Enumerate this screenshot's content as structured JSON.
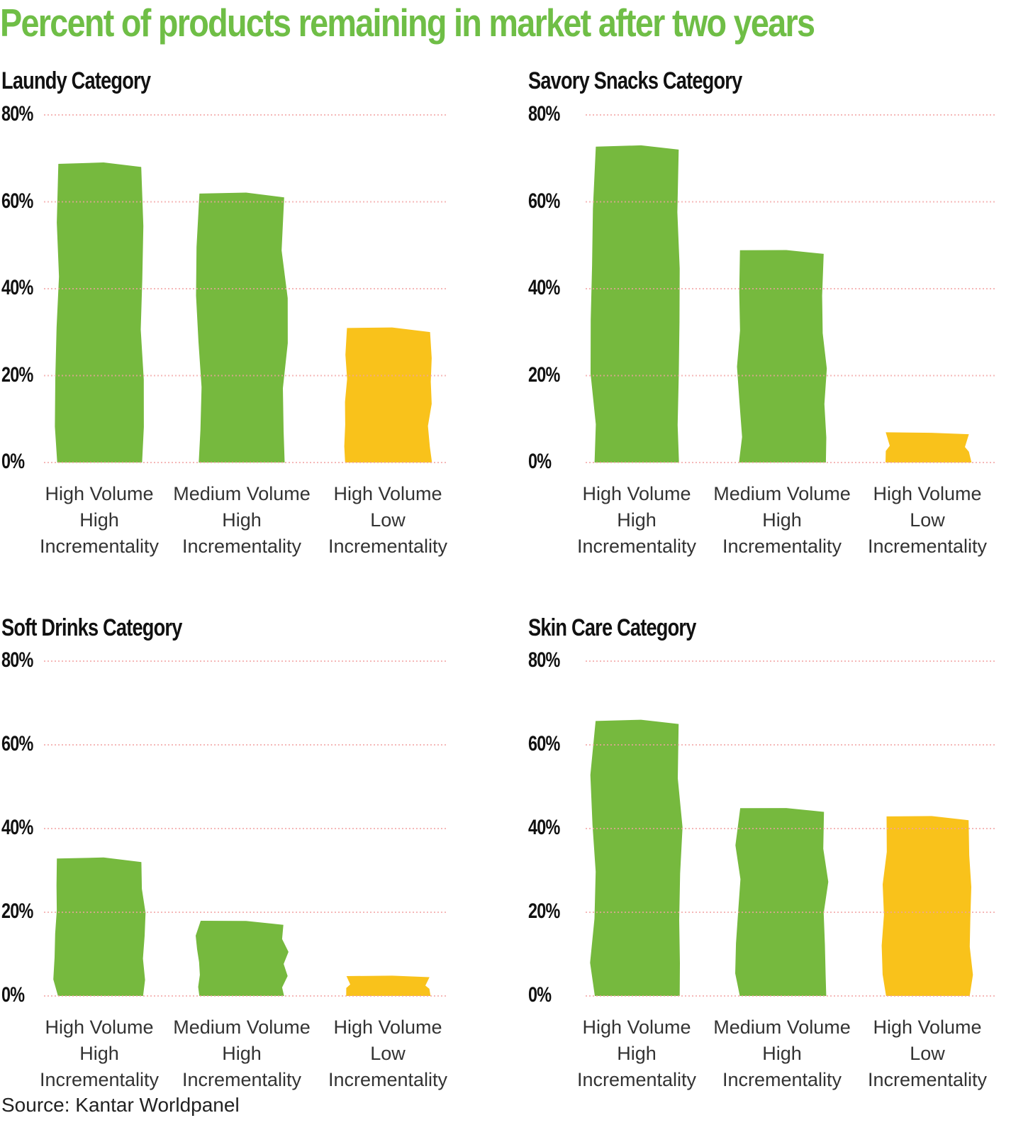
{
  "page_title": "Percent of products remaining in market after two years",
  "source": "Source: Kantar Worldpanel",
  "colors": {
    "title_green": "#6FBE46",
    "bar_green": "#76B93E",
    "bar_yellow": "#F9C21B",
    "grid_pink": "#F2A1A1",
    "heading_black": "#111111",
    "label_gray": "#333333"
  },
  "y_ticks": [
    "80%",
    "60%",
    "40%",
    "20%",
    "0%"
  ],
  "chart_data": [
    {
      "type": "bar",
      "title": "Laundy Category",
      "categories": [
        [
          "High Volume",
          "High",
          "Incrementality"
        ],
        [
          "Medium Volume",
          "High",
          "Incrementality"
        ],
        [
          "High Volume",
          "Low",
          "Incrementality"
        ]
      ],
      "values": [
        69,
        62,
        31
      ],
      "bar_colors": [
        "green",
        "green",
        "yellow"
      ],
      "ylim": [
        0,
        80
      ],
      "ytick_labels": [
        "0%",
        "20%",
        "40%",
        "60%",
        "80%"
      ],
      "grid": "dotted horizontal lines",
      "legend": "none"
    },
    {
      "type": "bar",
      "title": "Savory Snacks Category",
      "categories": [
        [
          "High Volume",
          "High",
          "Incrementality"
        ],
        [
          "Medium Volume",
          "High",
          "Incrementality"
        ],
        [
          "High Volume",
          "Low",
          "Incrementality"
        ]
      ],
      "values": [
        73,
        49,
        7
      ],
      "bar_colors": [
        "green",
        "green",
        "yellow"
      ],
      "ylim": [
        0,
        80
      ],
      "ytick_labels": [
        "0%",
        "20%",
        "40%",
        "60%",
        "80%"
      ],
      "grid": "dotted horizontal lines",
      "legend": "none"
    },
    {
      "type": "bar",
      "title": "Soft Drinks Category",
      "categories": [
        [
          "High Volume",
          "High",
          "Incrementality"
        ],
        [
          "Medium Volume",
          "High",
          "Incrementality"
        ],
        [
          "High Volume",
          "Low",
          "Incrementality"
        ]
      ],
      "values": [
        33,
        18,
        5
      ],
      "bar_colors": [
        "green",
        "green",
        "yellow"
      ],
      "ylim": [
        0,
        80
      ],
      "ytick_labels": [
        "0%",
        "20%",
        "40%",
        "60%",
        "80%"
      ],
      "grid": "dotted horizontal lines",
      "legend": "none"
    },
    {
      "type": "bar",
      "title": "Skin Care Category",
      "categories": [
        [
          "High Volume",
          "High",
          "Incrementality"
        ],
        [
          "Medium Volume",
          "High",
          "Incrementality"
        ],
        [
          "High Volume",
          "Low",
          "Incrementality"
        ]
      ],
      "values": [
        66,
        45,
        43
      ],
      "bar_colors": [
        "green",
        "green",
        "yellow"
      ],
      "ylim": [
        0,
        80
      ],
      "ytick_labels": [
        "0%",
        "20%",
        "40%",
        "60%",
        "80%"
      ],
      "grid": "dotted horizontal lines",
      "legend": "none"
    }
  ]
}
